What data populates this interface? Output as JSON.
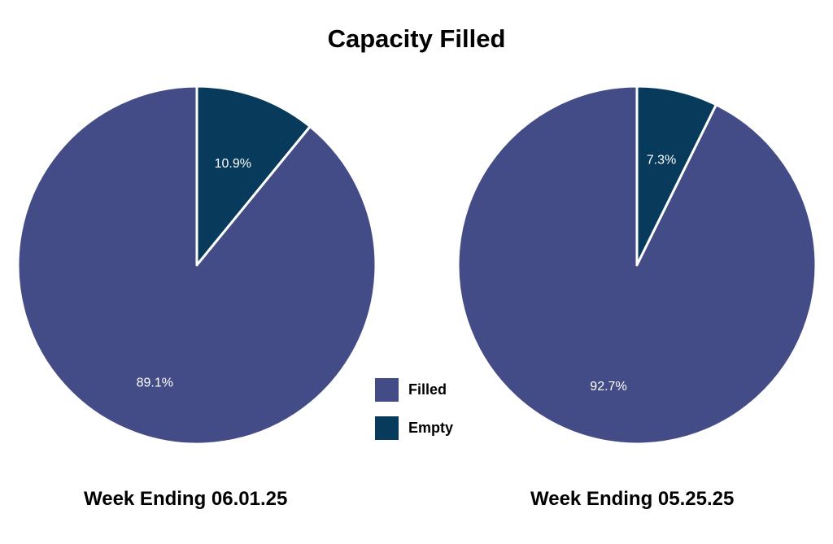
{
  "chart_data": {
    "type": "pie",
    "title": "Capacity Filled",
    "legend_position": "center-bottom",
    "series_colors": {
      "Filled": "#434C86",
      "Empty": "#073A5B"
    },
    "legend": [
      "Filled",
      "Empty"
    ],
    "charts": [
      {
        "label": "Week Ending 06.01.25",
        "slices": [
          {
            "name": "Empty",
            "value": 10.9,
            "label": "10.9%"
          },
          {
            "name": "Filled",
            "value": 89.1,
            "label": "89.1%"
          }
        ]
      },
      {
        "label": "Week Ending 05.25.25",
        "slices": [
          {
            "name": "Empty",
            "value": 7.3,
            "label": "7.3%"
          },
          {
            "name": "Filled",
            "value": 92.7,
            "label": "92.7%"
          }
        ]
      }
    ]
  }
}
